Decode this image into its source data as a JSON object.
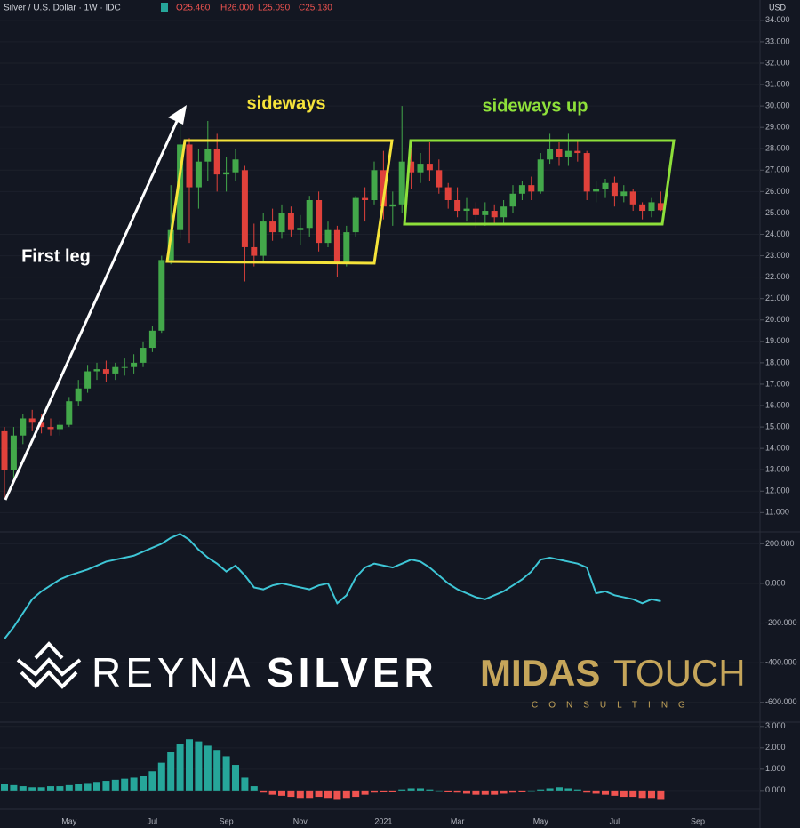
{
  "chart_data": [
    {
      "type": "candlestick",
      "title": "Silver / U.S. Dollar · 1W · IDC",
      "currency": "USD",
      "ohlc_labels": [
        "O25.460",
        "H26.000",
        "L25.090",
        "C25.130"
      ],
      "annotations": [
        "First leg",
        "sideways",
        "sideways up"
      ],
      "up_color": "#43a84a",
      "down_color": "#e0413b",
      "categories": [
        null,
        null,
        null,
        null,
        null,
        null,
        null,
        "May",
        null,
        null,
        null,
        null,
        null,
        null,
        null,
        null,
        "Jul",
        null,
        null,
        null,
        null,
        null,
        null,
        null,
        "Sep",
        null,
        null,
        null,
        null,
        null,
        null,
        null,
        "Nov",
        null,
        null,
        null,
        null,
        null,
        null,
        null,
        null,
        "2021",
        null,
        null,
        null,
        null,
        null,
        null,
        null,
        "Mar",
        null,
        null,
        null,
        null,
        null,
        null,
        null,
        null,
        "May",
        null,
        null,
        null,
        null,
        null,
        null,
        null,
        "Jul",
        null,
        null,
        null,
        null,
        null,
        null,
        null,
        null,
        "Sep",
        null,
        null
      ],
      "open": [
        14.8,
        13.0,
        14.6,
        15.4,
        15.2,
        15.0,
        14.9,
        15.1,
        16.2,
        16.8,
        17.6,
        17.7,
        17.5,
        17.8,
        17.8,
        18.0,
        18.7,
        19.5,
        22.8,
        24.2,
        28.2,
        26.2,
        27.4,
        28.0,
        26.8,
        26.9,
        27.0,
        23.4,
        23.0,
        24.6,
        24.1,
        25.0,
        24.2,
        24.3,
        25.6,
        23.6,
        24.2,
        22.7,
        24.1,
        25.7,
        25.6,
        27.0,
        25.3,
        25.4,
        27.4,
        26.9,
        27.3,
        27.0,
        26.2,
        25.6,
        25.1,
        25.2,
        24.9,
        25.1,
        24.8,
        25.3,
        25.9,
        26.3,
        26.0,
        27.5,
        28.0,
        27.6,
        27.9,
        27.8,
        26.0,
        26.1,
        26.4,
        25.8,
        26.0,
        25.4,
        25.1,
        25.46,
        null,
        null,
        null,
        null,
        null,
        null
      ],
      "high": [
        15.0,
        15.0,
        15.6,
        15.8,
        15.6,
        15.4,
        15.3,
        16.4,
        17.2,
        17.9,
        18.0,
        18.1,
        18.0,
        18.2,
        18.4,
        19.0,
        19.7,
        23.0,
        26.3,
        29.8,
        28.5,
        28.0,
        29.3,
        28.7,
        27.6,
        28.0,
        27.2,
        24.5,
        25.0,
        25.2,
        25.4,
        25.3,
        24.9,
        25.8,
        26.0,
        24.6,
        24.4,
        24.4,
        25.8,
        26.2,
        27.4,
        27.9,
        26.0,
        30.0,
        28.0,
        27.8,
        28.3,
        27.5,
        26.4,
        26.2,
        25.7,
        25.5,
        25.5,
        25.4,
        25.6,
        26.3,
        26.5,
        26.7,
        27.8,
        28.7,
        28.3,
        28.7,
        28.4,
        27.9,
        26.5,
        26.6,
        26.7,
        26.3,
        26.1,
        25.5,
        25.7,
        26.0,
        null,
        null,
        null,
        null,
        null,
        null
      ],
      "low": [
        11.7,
        12.6,
        14.2,
        14.8,
        14.7,
        14.6,
        14.6,
        15.0,
        16.0,
        16.6,
        17.2,
        17.1,
        17.2,
        17.4,
        17.5,
        17.8,
        18.5,
        19.4,
        22.6,
        23.8,
        23.6,
        25.2,
        26.5,
        26.0,
        26.0,
        26.5,
        21.8,
        22.5,
        22.7,
        23.7,
        23.8,
        23.9,
        23.5,
        23.9,
        23.2,
        23.4,
        22.0,
        22.5,
        23.9,
        24.6,
        25.4,
        24.7,
        24.4,
        25.0,
        26.1,
        26.4,
        26.5,
        25.9,
        25.2,
        24.8,
        24.6,
        24.3,
        24.4,
        24.5,
        24.5,
        25.0,
        25.6,
        25.6,
        25.9,
        27.3,
        27.2,
        27.2,
        27.4,
        25.6,
        25.5,
        25.7,
        25.3,
        25.5,
        25.1,
        24.7,
        24.8,
        25.09,
        null,
        null,
        null,
        null,
        null,
        null
      ],
      "close": [
        13.0,
        14.6,
        15.4,
        15.2,
        15.0,
        14.9,
        15.1,
        16.2,
        16.8,
        17.6,
        17.7,
        17.5,
        17.8,
        17.8,
        18.0,
        18.7,
        19.5,
        22.8,
        24.2,
        28.2,
        26.2,
        27.4,
        28.0,
        26.8,
        26.9,
        27.5,
        23.4,
        23.0,
        24.6,
        24.1,
        25.0,
        24.2,
        24.3,
        25.6,
        23.6,
        24.2,
        22.7,
        24.1,
        25.7,
        25.6,
        27.0,
        25.3,
        25.4,
        27.4,
        26.9,
        27.3,
        27.0,
        26.2,
        25.6,
        25.1,
        25.2,
        24.9,
        25.1,
        24.8,
        25.3,
        25.9,
        26.3,
        26.0,
        27.5,
        28.0,
        27.6,
        27.9,
        27.8,
        26.0,
        26.1,
        26.4,
        25.8,
        26.0,
        25.4,
        25.1,
        25.5,
        25.13,
        null,
        null,
        null,
        null,
        null,
        null
      ],
      "ylim": [
        10.1,
        34.95
      ],
      "yticks": [
        {
          "value": 11,
          "label": "11.000"
        },
        {
          "value": 12,
          "label": "12.000"
        },
        {
          "value": 13,
          "label": "13.000"
        },
        {
          "value": 14,
          "label": "14.000"
        },
        {
          "value": 15,
          "label": "15.000"
        },
        {
          "value": 16,
          "label": "16.000"
        },
        {
          "value": 17,
          "label": "17.000"
        },
        {
          "value": 18,
          "label": "18.000"
        },
        {
          "value": 19,
          "label": "19.000"
        },
        {
          "value": 20,
          "label": "20.000"
        },
        {
          "value": 21,
          "label": "21.000"
        },
        {
          "value": 22,
          "label": "22.000"
        },
        {
          "value": 23,
          "label": "23.000"
        },
        {
          "value": 24,
          "label": "24.000"
        },
        {
          "value": 25,
          "label": "25.000"
        },
        {
          "value": 26,
          "label": "26.000"
        },
        {
          "value": 27,
          "label": "27.000"
        },
        {
          "value": 28,
          "label": "28.000"
        },
        {
          "value": 29,
          "label": "29.000"
        },
        {
          "value": 30,
          "label": "30.000"
        },
        {
          "value": 31,
          "label": "31.000"
        },
        {
          "value": 32,
          "label": "32.000"
        },
        {
          "value": 33,
          "label": "33.000"
        },
        {
          "value": 34,
          "label": "34.000"
        }
      ],
      "grid": true
    },
    {
      "type": "line",
      "color": "#3ec6d6",
      "values": [
        -280,
        -220,
        -150,
        -80,
        -40,
        -10,
        20,
        40,
        55,
        70,
        90,
        110,
        120,
        130,
        140,
        160,
        180,
        200,
        230,
        250,
        220,
        170,
        130,
        100,
        60,
        90,
        40,
        -20,
        -30,
        -10,
        0,
        -10,
        -20,
        -30,
        -10,
        0,
        -100,
        -60,
        30,
        80,
        100,
        90,
        80,
        100,
        120,
        110,
        80,
        40,
        0,
        -30,
        -50,
        -70,
        -80,
        -60,
        -40,
        -10,
        20,
        60,
        120,
        130,
        120,
        110,
        100,
        80,
        -50,
        -40,
        -60,
        -70,
        -80,
        -100,
        -80,
        -90,
        null,
        null,
        null,
        null,
        null,
        null
      ],
      "ylim": [
        -700,
        260
      ],
      "yticks": [
        {
          "value": 200,
          "label": "200.000"
        },
        {
          "value": 0,
          "label": "0.000"
        },
        {
          "value": -200,
          "label": "-200.000"
        },
        {
          "value": -400,
          "label": "-400.000"
        },
        {
          "value": -600,
          "label": "-600.000"
        }
      ],
      "grid": true
    },
    {
      "type": "histogram",
      "up_color": "#26a69a",
      "down_color": "#ef5350",
      "values": [
        0.3,
        0.25,
        0.2,
        0.15,
        0.15,
        0.2,
        0.2,
        0.25,
        0.3,
        0.35,
        0.4,
        0.45,
        0.5,
        0.55,
        0.6,
        0.7,
        0.9,
        1.3,
        1.8,
        2.2,
        2.4,
        2.3,
        2.1,
        1.9,
        1.6,
        1.2,
        0.6,
        0.2,
        -0.1,
        -0.2,
        -0.25,
        -0.3,
        -0.35,
        -0.35,
        -0.3,
        -0.35,
        -0.4,
        -0.35,
        -0.3,
        -0.2,
        -0.1,
        -0.05,
        -0.05,
        0.05,
        0.1,
        0.1,
        0.05,
        0,
        -0.05,
        -0.1,
        -0.15,
        -0.2,
        -0.2,
        -0.2,
        -0.15,
        -0.1,
        -0.05,
        0,
        0.05,
        0.1,
        0.15,
        0.1,
        0.05,
        -0.1,
        -0.15,
        -0.2,
        -0.25,
        -0.3,
        -0.3,
        -0.35,
        -0.35,
        -0.4,
        null,
        null,
        null,
        null,
        null,
        null
      ],
      "ylim": [
        -0.88,
        3.2
      ],
      "yticks": [
        {
          "value": 3,
          "label": "3.000"
        },
        {
          "value": 2,
          "label": "2.000"
        },
        {
          "value": 1,
          "label": "1.000"
        },
        {
          "value": 0,
          "label": "0.000"
        }
      ],
      "grid": true
    }
  ],
  "watermark": {
    "left_thin": "REYNA",
    "left_bold": "SILVER",
    "right_bold": "MIDAS",
    "right_thin": "TOUCH",
    "right_sub": "CONSULTING"
  }
}
